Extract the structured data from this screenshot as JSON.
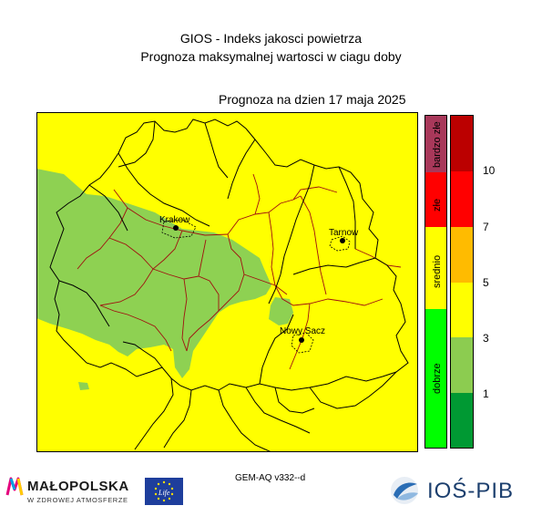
{
  "header": {
    "title_line1": "GIOS - Indeks jakosci powietrza",
    "title_line2": "Prognoza maksymalnej wartosci w ciagu doby",
    "forecast_date": "Prognoza na dzien  17 maja 2025"
  },
  "map": {
    "cities": [
      {
        "name": "Krakow"
      },
      {
        "name": "Tarnow"
      },
      {
        "name": "Nowy Sacz"
      }
    ],
    "colors": {
      "background_yellow": "#ffff00",
      "green_area": "#8ed152",
      "voivodeship_border": "#000000",
      "county_border": "#a01010"
    }
  },
  "legend": {
    "categories": [
      {
        "label": "bardzo złe",
        "color": "#a8385a"
      },
      {
        "label": "złe",
        "color": "#ff0000"
      },
      {
        "label": "srednio",
        "color": "#ffff00"
      },
      {
        "label": "dobrze",
        "color": "#00ff00"
      }
    ],
    "scale_colors": [
      "#009933",
      "#8ccc50",
      "#ffff00",
      "#ffbb00",
      "#ff0000",
      "#bb0000"
    ],
    "tick_labels": [
      "10",
      "7",
      "5",
      "3",
      "1"
    ]
  },
  "footer": {
    "model": "GEM-AQ v332--d",
    "malopolska_name": "MAŁOPOLSKA",
    "malopolska_tagline": "W ZDROWEJ ATMOSFERZE",
    "eu_flag_text": "Life",
    "ios_name": "IOŚ-PIB"
  }
}
